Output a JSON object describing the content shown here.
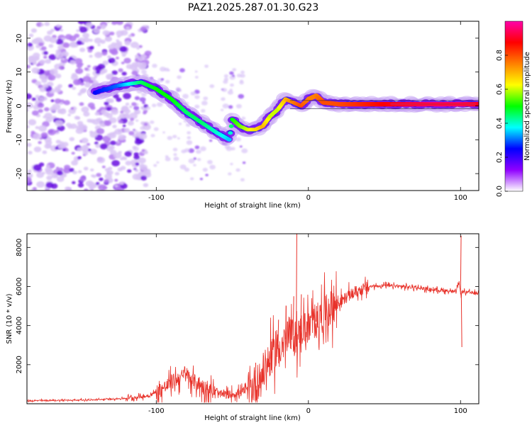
{
  "title": "PAZ1.2025.287.01.30.G23",
  "colors": {
    "snr_line": "#e8322a",
    "ridge_core": "#e8123a",
    "noise_light": "#cfb2f2",
    "noise_dark": "#6a12e0"
  },
  "chart_data": [
    {
      "type": "heatmap",
      "name": "spectrogram",
      "xlabel": "Height of straight line (km)",
      "ylabel": "Frequency (Hz)",
      "xlim": [
        -185,
        112
      ],
      "ylim": [
        -25,
        25
      ],
      "xticks": [
        -100,
        0,
        100
      ],
      "yticks": [
        -20,
        -10,
        0,
        10,
        20
      ],
      "xtick_labels": [
        "-100",
        "0",
        "100"
      ],
      "ytick_labels": [
        "-20",
        "-10",
        "0",
        "10",
        "20"
      ],
      "colorbar": {
        "label": "Normalized spectral amplitude",
        "range": [
          0,
          1
        ],
        "ticks": [
          0.0,
          0.2,
          0.4,
          0.6,
          0.8
        ],
        "tick_labels": [
          "0.0",
          "0.2",
          "0.4",
          "0.6",
          "0.8"
        ],
        "stops": [
          "#ffffff",
          "#9000ff",
          "#0000ff",
          "#00ffff",
          "#00ff00",
          "#ffff00",
          "#ff8000",
          "#ff0000",
          "#ff00aa"
        ]
      },
      "ridge": [
        {
          "h": -140,
          "f": 4,
          "a": 0.25
        },
        {
          "h": -125,
          "f": 6,
          "a": 0.3
        },
        {
          "h": -110,
          "f": 7,
          "a": 0.45
        },
        {
          "h": -100,
          "f": 5,
          "a": 0.5
        },
        {
          "h": -90,
          "f": 2,
          "a": 0.5
        },
        {
          "h": -80,
          "f": -2,
          "a": 0.45
        },
        {
          "h": -70,
          "f": -5,
          "a": 0.45
        },
        {
          "h": -60,
          "f": -8,
          "a": 0.4
        },
        {
          "h": -52,
          "f": -10,
          "a": 0.35
        },
        {
          "h": -50,
          "f": -4,
          "a": 0.5
        },
        {
          "h": -45,
          "f": -6,
          "a": 0.55
        },
        {
          "h": -40,
          "f": -7,
          "a": 0.6
        },
        {
          "h": -35,
          "f": -7,
          "a": 0.65
        },
        {
          "h": -30,
          "f": -6,
          "a": 0.7
        },
        {
          "h": -25,
          "f": -3,
          "a": 0.6
        },
        {
          "h": -20,
          "f": -1,
          "a": 0.6
        },
        {
          "h": -15,
          "f": 2,
          "a": 0.7
        },
        {
          "h": -10,
          "f": 1,
          "a": 0.75
        },
        {
          "h": -5,
          "f": 0,
          "a": 0.8
        },
        {
          "h": 0,
          "f": 2,
          "a": 0.75
        },
        {
          "h": 5,
          "f": 3,
          "a": 0.75
        },
        {
          "h": 10,
          "f": 1,
          "a": 0.8
        },
        {
          "h": 20,
          "f": 0.5,
          "a": 0.8
        },
        {
          "h": 40,
          "f": 0.5,
          "a": 0.85
        },
        {
          "h": 60,
          "f": 0.5,
          "a": 0.9
        },
        {
          "h": 80,
          "f": 0.5,
          "a": 0.95
        },
        {
          "h": 100,
          "f": 0.5,
          "a": 0.95
        },
        {
          "h": 112,
          "f": 0.5,
          "a": 0.9
        }
      ]
    },
    {
      "type": "line",
      "name": "snr",
      "xlabel": "Height of straight line (km)",
      "ylabel": "SNR (10 * v/v)",
      "xlim": [
        -185,
        112
      ],
      "ylim": [
        0,
        8700
      ],
      "xticks": [
        -100,
        0,
        100
      ],
      "yticks": [
        2000,
        4000,
        6000,
        8000
      ],
      "xtick_labels": [
        "-100",
        "0",
        "100"
      ],
      "ytick_labels": [
        "2000",
        "4000",
        "6000",
        "8000"
      ],
      "series": [
        {
          "name": "SNR",
          "x": [
            -185,
            -160,
            -140,
            -120,
            -105,
            -95,
            -88,
            -80,
            -75,
            -70,
            -65,
            -60,
            -55,
            -50,
            -45,
            -40,
            -35,
            -30,
            -25,
            -20,
            -15,
            -10,
            -7,
            -5,
            0,
            5,
            10,
            15,
            20,
            30,
            40,
            50,
            60,
            70,
            80,
            90,
            97,
            99,
            100,
            101,
            103,
            112
          ],
          "y": [
            150,
            180,
            200,
            280,
            400,
            800,
            1200,
            1500,
            1100,
            900,
            700,
            500,
            450,
            500,
            550,
            700,
            900,
            1500,
            2300,
            2800,
            3300,
            3500,
            3300,
            3800,
            3900,
            4200,
            4600,
            4900,
            5200,
            5700,
            6000,
            6050,
            6000,
            5950,
            5850,
            5800,
            5700,
            6200,
            5600,
            5750,
            5700,
            5650
          ]
        }
      ],
      "spikes": [
        {
          "x": -35,
          "y": 2100
        },
        {
          "x": -30,
          "y": 2600
        },
        {
          "x": -25,
          "y": 3300
        },
        {
          "x": -20,
          "y": 4300
        },
        {
          "x": -15,
          "y": 5000
        },
        {
          "x": -10,
          "y": 5500
        },
        {
          "x": -8,
          "y": 8700
        },
        {
          "x": -5,
          "y": 5600
        },
        {
          "x": 5,
          "y": 5000
        },
        {
          "x": 100,
          "y": 8600
        },
        {
          "x": 100.5,
          "y": 2900
        }
      ]
    }
  ]
}
